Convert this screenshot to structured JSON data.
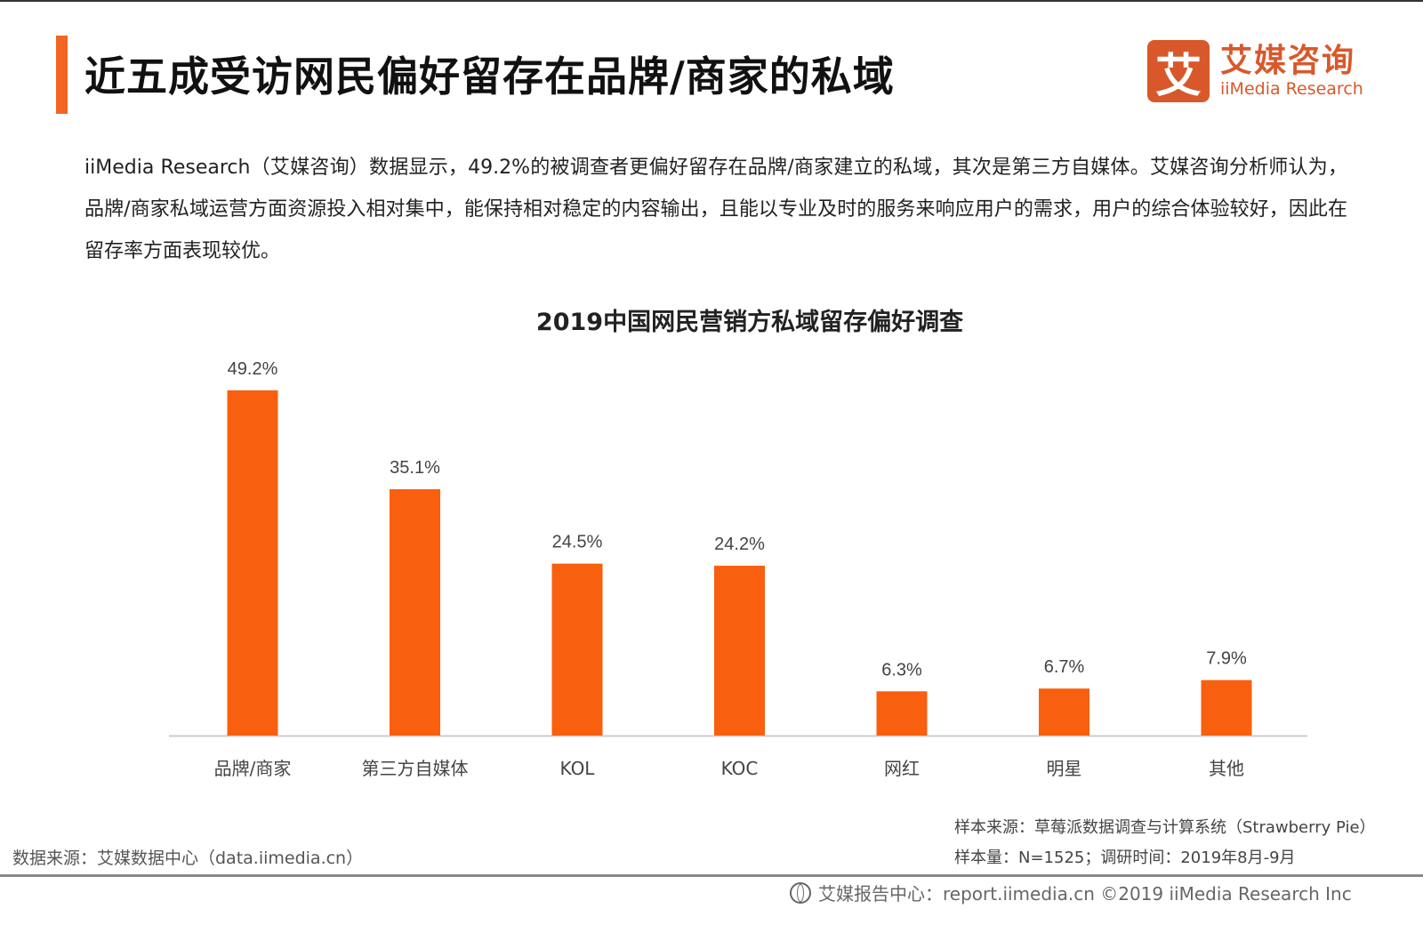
{
  "header": {
    "title": "近五成受访网民偏好留存在品牌/商家的私域"
  },
  "logo": {
    "glyph": "艾",
    "cn": "艾媒咨询",
    "en": "iiMedia Research"
  },
  "description": "iiMedia Research（艾媒咨询）数据显示，49.2%的被调查者更偏好留存在品牌/商家建立的私域，其次是第三方自媒体。艾媒咨询分析师认为，品牌/商家私域运营方面资源投入相对集中，能保持相对稳定的内容输出，且能以专业及时的服务来响应用户的需求，用户的综合体验较好，因此在留存率方面表现较优。",
  "chart_data": {
    "type": "bar",
    "title": "2019中国网民营销方私域留存偏好调查",
    "categories": [
      "品牌/商家",
      "第三方自媒体",
      "KOL",
      "KOC",
      "网红",
      "明星",
      "其他"
    ],
    "values": [
      49.2,
      35.1,
      24.5,
      24.2,
      6.3,
      6.7,
      7.9
    ],
    "labels": [
      "49.2%",
      "35.1%",
      "24.5%",
      "24.2%",
      "6.3%",
      "6.7%",
      "7.9%"
    ],
    "xlabel": "",
    "ylabel": "",
    "ylim": [
      0,
      55
    ],
    "grid": false,
    "color": "#f85f0f"
  },
  "sources": {
    "left": "数据来源：艾媒数据中心（data.iimedia.cn）",
    "sample_source": "样本来源：草莓派数据调查与计算系统（Strawberry Pie）",
    "sample_size": "样本量：N=1525；调研时间：2019年8月-9月"
  },
  "footer": {
    "text": "艾媒报告中心：report.iimedia.cn ©2019  iiMedia Research  Inc",
    "icon": "globe-cursor-icon"
  }
}
